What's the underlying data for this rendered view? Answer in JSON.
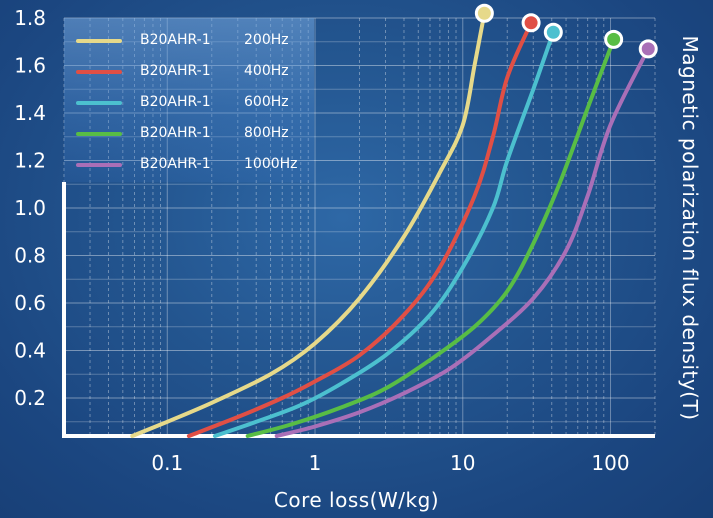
{
  "chart_data": {
    "type": "line",
    "title": "",
    "xlabel": "Core  loss(W/kg)",
    "ylabel": "Magnetic  polarization  flux  density(T)",
    "x_scale": "log",
    "xlim": [
      0.02,
      200
    ],
    "ylim": [
      0.04,
      1.8
    ],
    "x_ticks": [
      {
        "value": 0.1,
        "label": "0.1"
      },
      {
        "value": 1,
        "label": "1"
      },
      {
        "value": 10,
        "label": "10"
      },
      {
        "value": 100,
        "label": "100"
      }
    ],
    "y_ticks": [
      {
        "value": 0.2,
        "label": "0.2"
      },
      {
        "value": 0.4,
        "label": "0.4"
      },
      {
        "value": 0.6,
        "label": "0.6"
      },
      {
        "value": 0.8,
        "label": "0.8"
      },
      {
        "value": 1.0,
        "label": "1.0"
      },
      {
        "value": 1.2,
        "label": "1.2"
      },
      {
        "value": 1.4,
        "label": "1.4"
      },
      {
        "value": 1.6,
        "label": "1.6"
      },
      {
        "value": 1.8,
        "label": "1.8"
      }
    ],
    "grid": true,
    "legend_position": "top-left",
    "series": [
      {
        "name": "B20AHR-1",
        "freq": "200Hz",
        "color": "#e6d98a",
        "points": [
          [
            0.058,
            0.04
          ],
          [
            0.1,
            0.1
          ],
          [
            0.2,
            0.18
          ],
          [
            0.5,
            0.3
          ],
          [
            1,
            0.43
          ],
          [
            2,
            0.62
          ],
          [
            4,
            0.88
          ],
          [
            7,
            1.15
          ],
          [
            10,
            1.35
          ],
          [
            12,
            1.6
          ],
          [
            14,
            1.82
          ]
        ]
      },
      {
        "name": "B20AHR-1",
        "freq": "400Hz",
        "color": "#e04f45",
        "points": [
          [
            0.14,
            0.04
          ],
          [
            0.3,
            0.12
          ],
          [
            0.6,
            0.2
          ],
          [
            1,
            0.27
          ],
          [
            2,
            0.38
          ],
          [
            4,
            0.55
          ],
          [
            7,
            0.75
          ],
          [
            12,
            1.05
          ],
          [
            16,
            1.3
          ],
          [
            20,
            1.55
          ],
          [
            29,
            1.78
          ]
        ]
      },
      {
        "name": "B20AHR-1",
        "freq": "600Hz",
        "color": "#4cc0cf",
        "points": [
          [
            0.21,
            0.04
          ],
          [
            0.4,
            0.1
          ],
          [
            0.8,
            0.17
          ],
          [
            1.5,
            0.26
          ],
          [
            3,
            0.38
          ],
          [
            6,
            0.55
          ],
          [
            10,
            0.75
          ],
          [
            16,
            1.0
          ],
          [
            20,
            1.2
          ],
          [
            30,
            1.5
          ],
          [
            41,
            1.74
          ]
        ]
      },
      {
        "name": "B20AHR-1",
        "freq": "800Hz",
        "color": "#58bd45",
        "points": [
          [
            0.35,
            0.04
          ],
          [
            0.7,
            0.09
          ],
          [
            1.5,
            0.16
          ],
          [
            3,
            0.24
          ],
          [
            6,
            0.36
          ],
          [
            12,
            0.5
          ],
          [
            20,
            0.65
          ],
          [
            30,
            0.85
          ],
          [
            45,
            1.1
          ],
          [
            70,
            1.42
          ],
          [
            105,
            1.71
          ]
        ]
      },
      {
        "name": "B20AHR-1",
        "freq": "1000Hz",
        "color": "#a96fb7",
        "points": [
          [
            0.55,
            0.04
          ],
          [
            1,
            0.08
          ],
          [
            2,
            0.14
          ],
          [
            4,
            0.22
          ],
          [
            8,
            0.32
          ],
          [
            15,
            0.45
          ],
          [
            30,
            0.62
          ],
          [
            50,
            0.82
          ],
          [
            70,
            1.05
          ],
          [
            100,
            1.35
          ],
          [
            180,
            1.67
          ]
        ]
      }
    ]
  }
}
